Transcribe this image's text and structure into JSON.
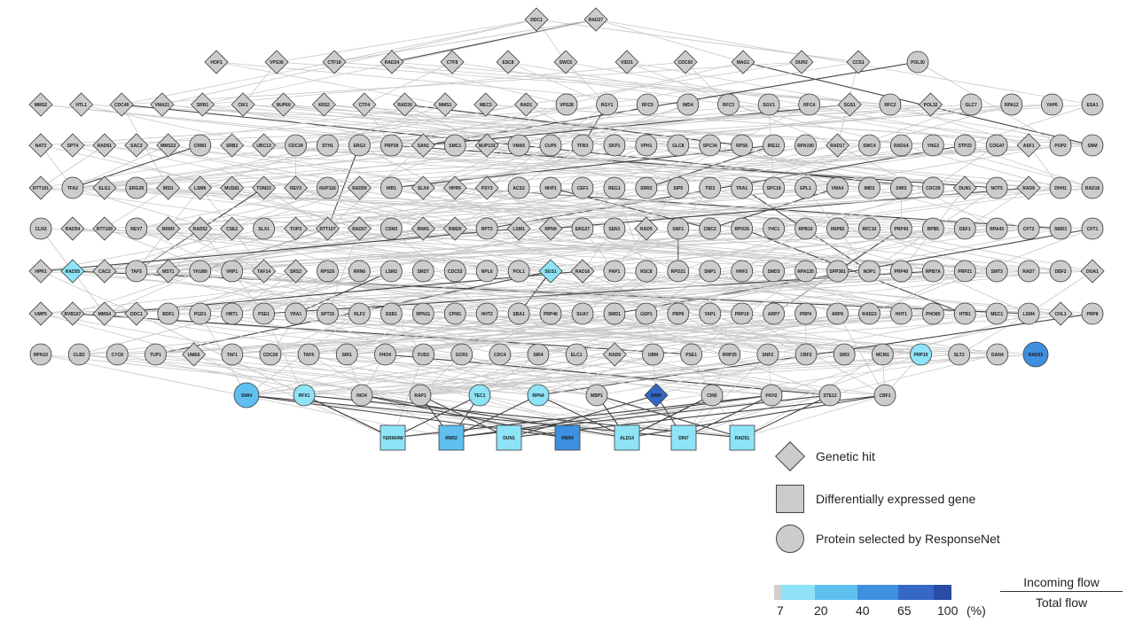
{
  "legend": {
    "genetic_hit": "Genetic hit",
    "diff_expressed": "Differentially expressed gene",
    "protein_selected": "Protein selected by ResponseNet"
  },
  "colorbar": {
    "ticks": [
      "7",
      "20",
      "40",
      "65",
      "100"
    ],
    "unit": "(%)",
    "colors": [
      "#cfcfcf",
      "#8fe3f7",
      "#5fc0ef",
      "#3f8fe0",
      "#3567c7",
      "#2a4ba8"
    ]
  },
  "flow": {
    "numerator": "Incoming flow",
    "denominator": "Total flow"
  },
  "network": {
    "rows": [
      [
        "DDC1",
        "RAD27"
      ],
      [
        "HOF1",
        "VPS36",
        "CTF18",
        "RAD24",
        "CTF8",
        "ESC8",
        "SWC5",
        "VID21",
        "CDC50",
        "MAG1",
        "DUR2",
        "CCS1",
        "POL30"
      ],
      [
        "MMS2",
        "HTL1",
        "CDC40",
        "VMA21",
        "SRR1",
        "CIK1",
        "NUP60",
        "XRS2",
        "CTF4",
        "RAD30",
        "MMS1",
        "MEC3",
        "RAD1",
        "VPS28",
        "RGY1",
        "RFC5",
        "IMD4",
        "RFC3",
        "SGV1",
        "RFC4",
        "SGS1",
        "RFC2",
        "POL32",
        "GLC7",
        "RPA12",
        "YAP6",
        "ESA1"
      ],
      [
        "NAT3",
        "SPT4",
        "RAD61",
        "SAC3",
        "MMS22",
        "CRM1",
        "SRB2",
        "UBC13",
        "CDC34",
        "STH1",
        "ERG3",
        "PRP38",
        "SAN1",
        "SMC1",
        "NUP133",
        "VMA5",
        "CUP5",
        "TFB3",
        "SKP1",
        "VPH1",
        "GLC8",
        "SPC34",
        "RPS6",
        "IRE11",
        "RPA190",
        "RAD17",
        "SWC4",
        "RAD14",
        "YNG2",
        "STP22",
        "COG47",
        "ASF1",
        "POP2",
        "SNM"
      ],
      [
        "RTT101",
        "TFA2",
        "ELG1",
        "ERG28",
        "MSI1",
        "LSM6",
        "MUS81",
        "TOM22",
        "REV3",
        "NUP116",
        "RAD50",
        "HIR1",
        "SLX4",
        "HPR5",
        "PSY3",
        "ACS2",
        "NHP1",
        "CEF1",
        "REG1",
        "SRR2",
        "SIP5",
        "TID3",
        "TRA1",
        "SPC19",
        "EPL1",
        "VMA4",
        "IMD2",
        "SWI3",
        "CDC39",
        "DUN1",
        "NOT5",
        "RAD9",
        "DHH1",
        "RAD18"
      ],
      [
        "CLN3",
        "RAD54",
        "RTT109",
        "REV7",
        "RRM3",
        "RAD52",
        "CSE2",
        "SLX1",
        "TOP3",
        "RTT107",
        "RAD57",
        "CSM2",
        "RNH1",
        "RIM20",
        "RPT3",
        "LSM1",
        "RPN9",
        "ERG27",
        "SEN1",
        "RAD5",
        "SNF1",
        "CMC2",
        "RPO26",
        "YHC1",
        "RPB10",
        "HSP82",
        "RFC10",
        "PRP43",
        "RPB5",
        "DEF1",
        "RPA43",
        "CFT2",
        "SMD3",
        "CFT1"
      ],
      [
        "HPR1",
        "RAD55",
        "CAC2",
        "TAF5",
        "MST1",
        "YKU80",
        "VRP1",
        "TAF14",
        "SRS2",
        "RPS26",
        "RRN6",
        "LSM2",
        "SRD7",
        "CDC53",
        "NPL6",
        "POL1",
        "SGS1b",
        "RAD16",
        "PAP1",
        "RSC8",
        "RPO21",
        "SNP1",
        "HHF2",
        "SMD3b",
        "RPA135",
        "SPP381",
        "NOP1",
        "PRP40",
        "RPB7A",
        "PRP21",
        "SMT3",
        "RAD7",
        "DBF2",
        "DOA1"
      ],
      [
        "UMP5",
        "RVB107",
        "MMS4",
        "DDC1b",
        "BDF1",
        "PGD1",
        "HRT1",
        "PSE1",
        "YRA1",
        "SPT15",
        "RLF2",
        "SSB1",
        "RPN11",
        "CPM1",
        "HHT2",
        "SBA1",
        "PRP46",
        "SUA7",
        "SMD1",
        "GSP1",
        "PRP6",
        "YAP1",
        "PRP19",
        "ARP7",
        "PRP4",
        "ARP6",
        "RAD23",
        "HHT1",
        "PHO85",
        "HTB1",
        "MEC1",
        "LSM4",
        "CHL1",
        "PRP8"
      ],
      [
        "RPN10",
        "CLB2",
        "CYC8",
        "TUP1",
        "UME6",
        "TAF1",
        "CDC28",
        "TAF6",
        "SIR1",
        "FHO4",
        "FUS3",
        "GCR1",
        "CDC4",
        "SIR4",
        "ELC1",
        "RAD6",
        "UBM",
        "PSE1b",
        "RRP25",
        "SNF2",
        "CBF2",
        "SIR3",
        "MCM1",
        "PRP19b",
        "SLT2",
        "DAN4",
        "RAD53"
      ],
      [
        "SWI4",
        "RFX1",
        "INO4",
        "RAP1",
        "TEC1",
        "RPN4",
        "MBP1",
        "SWI6",
        "CIN5",
        "FKH2",
        "STE12",
        "CBF1"
      ],
      [
        "YER064W",
        "RNR2",
        "DUN1",
        "RNR4",
        "ALD14",
        "DIN7",
        "RAD51"
      ]
    ]
  }
}
